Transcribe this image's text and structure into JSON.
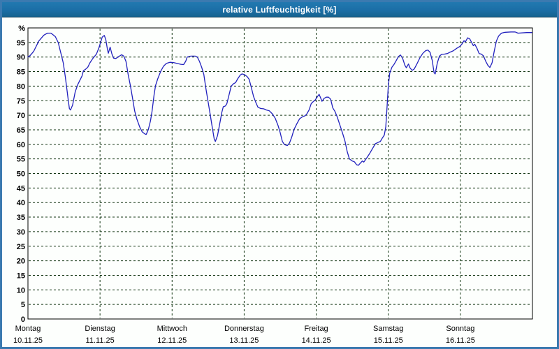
{
  "window": {
    "title": "relative Luftfeuchtigkeit [%]"
  },
  "colors": {
    "frame": "#3b7ab0",
    "titlebar": "#1b6ea6",
    "title_text": "#ffffff",
    "plot_background": "#fdfffd",
    "plot_border": "#000000",
    "grid": "#143714",
    "line": "#2121bd",
    "label_text": "#000000"
  },
  "chart_data": {
    "type": "line",
    "title": "relative Luftfeuchtigkeit [%]",
    "ylabel": "%",
    "y_top_label": "%",
    "ylim": [
      0,
      100
    ],
    "y_ticks": [
      0,
      5,
      10,
      15,
      20,
      25,
      30,
      35,
      40,
      45,
      50,
      55,
      60,
      65,
      70,
      75,
      80,
      85,
      90,
      95
    ],
    "grid": "dashed horizontal every 5 units, dashed vertical at each day boundary",
    "legend_position": "none",
    "x_axis": {
      "unit": "days",
      "days": [
        {
          "name": "Montag",
          "date": "10.11.25"
        },
        {
          "name": "Dienstag",
          "date": "11.11.25"
        },
        {
          "name": "Mittwoch",
          "date": "12.11.25"
        },
        {
          "name": "Donnerstag",
          "date": "13.11.25"
        },
        {
          "name": "Freitag",
          "date": "14.11.25"
        },
        {
          "name": "Samstag",
          "date": "15.11.25"
        },
        {
          "name": "Sonntag",
          "date": "16.11.25"
        }
      ]
    },
    "series": [
      {
        "name": "relative Luftfeuchtigkeit [%]",
        "points": [
          [
            0,
            90
          ],
          [
            0.03,
            90.5
          ],
          [
            0.08,
            92
          ],
          [
            0.15,
            95.5
          ],
          [
            0.22,
            97.5
          ],
          [
            0.27,
            98.2
          ],
          [
            0.32,
            98.2
          ],
          [
            0.38,
            97
          ],
          [
            0.42,
            95
          ],
          [
            0.45,
            92
          ],
          [
            0.47,
            90
          ],
          [
            0.49,
            88
          ],
          [
            0.52,
            83
          ],
          [
            0.54,
            79
          ],
          [
            0.56,
            75
          ],
          [
            0.575,
            72.3
          ],
          [
            0.59,
            71.8
          ],
          [
            0.62,
            73.5
          ],
          [
            0.655,
            78
          ],
          [
            0.69,
            80.5
          ],
          [
            0.72,
            82
          ],
          [
            0.75,
            83.5
          ],
          [
            0.77,
            85.3
          ],
          [
            0.8,
            85.8
          ],
          [
            0.83,
            86.5
          ],
          [
            0.86,
            88
          ],
          [
            0.9,
            89.5
          ],
          [
            0.95,
            91
          ],
          [
            0.985,
            93.2
          ],
          [
            1.03,
            96.8
          ],
          [
            1.06,
            97.4
          ],
          [
            1.08,
            96
          ],
          [
            1.1,
            93
          ],
          [
            1.115,
            91.3
          ],
          [
            1.14,
            93.4
          ],
          [
            1.165,
            91
          ],
          [
            1.19,
            89.6
          ],
          [
            1.22,
            89.5
          ],
          [
            1.26,
            90.2
          ],
          [
            1.3,
            90.8
          ],
          [
            1.33,
            90.3
          ],
          [
            1.36,
            88.5
          ],
          [
            1.39,
            84
          ],
          [
            1.42,
            80.3
          ],
          [
            1.45,
            76
          ],
          [
            1.48,
            71.5
          ],
          [
            1.51,
            68.8
          ],
          [
            1.55,
            66
          ],
          [
            1.585,
            64.3
          ],
          [
            1.62,
            63.6
          ],
          [
            1.64,
            63.4
          ],
          [
            1.67,
            65
          ],
          [
            1.7,
            68
          ],
          [
            1.72,
            71
          ],
          [
            1.75,
            77
          ],
          [
            1.77,
            80.2
          ],
          [
            1.8,
            82.5
          ],
          [
            1.84,
            85
          ],
          [
            1.88,
            86.8
          ],
          [
            1.92,
            87.8
          ],
          [
            1.97,
            88.2
          ],
          [
            2.02,
            88.1
          ],
          [
            2.07,
            87.8
          ],
          [
            2.12,
            87.5
          ],
          [
            2.16,
            87.4
          ],
          [
            2.19,
            88.6
          ],
          [
            2.21,
            90
          ],
          [
            2.26,
            90.3
          ],
          [
            2.32,
            90.3
          ],
          [
            2.35,
            90
          ],
          [
            2.38,
            88.5
          ],
          [
            2.41,
            86.5
          ],
          [
            2.44,
            84
          ],
          [
            2.47,
            79
          ],
          [
            2.5,
            74.5
          ],
          [
            2.53,
            70
          ],
          [
            2.56,
            65.5
          ],
          [
            2.585,
            61.8
          ],
          [
            2.6,
            61
          ],
          [
            2.63,
            63
          ],
          [
            2.66,
            67
          ],
          [
            2.69,
            71
          ],
          [
            2.71,
            72.9
          ],
          [
            2.74,
            73.2
          ],
          [
            2.76,
            74
          ],
          [
            2.79,
            77
          ],
          [
            2.82,
            80
          ],
          [
            2.85,
            80.8
          ],
          [
            2.88,
            81.2
          ],
          [
            2.91,
            82.5
          ],
          [
            2.945,
            83.8
          ],
          [
            2.97,
            84.2
          ],
          [
            3,
            84
          ],
          [
            3.04,
            83.3
          ],
          [
            3.07,
            82.3
          ],
          [
            3.1,
            79.5
          ],
          [
            3.13,
            76.5
          ],
          [
            3.16,
            74.5
          ],
          [
            3.19,
            72.8
          ],
          [
            3.23,
            72.3
          ],
          [
            3.27,
            72.2
          ],
          [
            3.31,
            71.8
          ],
          [
            3.35,
            71.5
          ],
          [
            3.39,
            70.5
          ],
          [
            3.43,
            69
          ],
          [
            3.47,
            66.5
          ],
          [
            3.5,
            64
          ],
          [
            3.53,
            61
          ],
          [
            3.56,
            59.9
          ],
          [
            3.6,
            59.6
          ],
          [
            3.63,
            60.5
          ],
          [
            3.66,
            62.5
          ],
          [
            3.69,
            65
          ],
          [
            3.73,
            67
          ],
          [
            3.77,
            68.8
          ],
          [
            3.81,
            69.5
          ],
          [
            3.845,
            69.8
          ],
          [
            3.87,
            70.5
          ],
          [
            3.9,
            71.8
          ],
          [
            3.93,
            74
          ],
          [
            3.96,
            74.7
          ],
          [
            3.985,
            75.2
          ],
          [
            4.02,
            76.5
          ],
          [
            4.04,
            77.2
          ],
          [
            4.06,
            76
          ],
          [
            4.08,
            74.8
          ],
          [
            4.11,
            75.8
          ],
          [
            4.14,
            76.2
          ],
          [
            4.17,
            76.2
          ],
          [
            4.2,
            75.5
          ],
          [
            4.23,
            72.5
          ],
          [
            4.26,
            71.3
          ],
          [
            4.29,
            69.5
          ],
          [
            4.33,
            66.5
          ],
          [
            4.37,
            63.5
          ],
          [
            4.4,
            61
          ],
          [
            4.43,
            57.5
          ],
          [
            4.46,
            55
          ],
          [
            4.5,
            54.3
          ],
          [
            4.53,
            54
          ],
          [
            4.56,
            53
          ],
          [
            4.585,
            52.8
          ],
          [
            4.61,
            53.5
          ],
          [
            4.64,
            54.3
          ],
          [
            4.66,
            53.9
          ],
          [
            4.7,
            55.3
          ],
          [
            4.74,
            56.8
          ],
          [
            4.78,
            58.5
          ],
          [
            4.82,
            60.2
          ],
          [
            4.86,
            60.7
          ],
          [
            4.89,
            61
          ],
          [
            4.92,
            62.3
          ],
          [
            4.945,
            63.2
          ],
          [
            4.965,
            66
          ],
          [
            4.98,
            72
          ],
          [
            5,
            80
          ],
          [
            5.02,
            84.5
          ],
          [
            5.05,
            86.5
          ],
          [
            5.08,
            87.5
          ],
          [
            5.11,
            88.8
          ],
          [
            5.14,
            90.2
          ],
          [
            5.17,
            90.7
          ],
          [
            5.2,
            89.5
          ],
          [
            5.23,
            87.2
          ],
          [
            5.25,
            86.3
          ],
          [
            5.28,
            87.6
          ],
          [
            5.3,
            86.3
          ],
          [
            5.33,
            85.4
          ],
          [
            5.36,
            85.9
          ],
          [
            5.4,
            87.8
          ],
          [
            5.44,
            89.8
          ],
          [
            5.48,
            91.3
          ],
          [
            5.52,
            92.2
          ],
          [
            5.55,
            92.4
          ],
          [
            5.58,
            91.6
          ],
          [
            5.61,
            88.8
          ],
          [
            5.635,
            84.6
          ],
          [
            5.65,
            84.2
          ],
          [
            5.68,
            88
          ],
          [
            5.71,
            90.3
          ],
          [
            5.74,
            90.9
          ],
          [
            5.78,
            91
          ],
          [
            5.82,
            91.2
          ],
          [
            5.86,
            91.7
          ],
          [
            5.9,
            92.1
          ],
          [
            5.95,
            93
          ],
          [
            5.99,
            93.6
          ],
          [
            6.02,
            94.4
          ],
          [
            6.05,
            95.6
          ],
          [
            6.07,
            95.2
          ],
          [
            6.1,
            96.6
          ],
          [
            6.13,
            96.2
          ],
          [
            6.16,
            94.8
          ],
          [
            6.18,
            93.9
          ],
          [
            6.2,
            94.4
          ],
          [
            6.23,
            93
          ],
          [
            6.26,
            91.2
          ],
          [
            6.29,
            91
          ],
          [
            6.32,
            90.4
          ],
          [
            6.35,
            88.6
          ],
          [
            6.38,
            87.2
          ],
          [
            6.41,
            86.4
          ],
          [
            6.44,
            88
          ],
          [
            6.47,
            92
          ],
          [
            6.5,
            95.5
          ],
          [
            6.53,
            97.2
          ],
          [
            6.57,
            98.2
          ],
          [
            6.62,
            98.5
          ],
          [
            6.7,
            98.6
          ],
          [
            6.76,
            98.6
          ],
          [
            6.8,
            98.2
          ],
          [
            6.85,
            98.3
          ],
          [
            6.92,
            98.4
          ],
          [
            6.99,
            98.4
          ]
        ]
      }
    ]
  }
}
